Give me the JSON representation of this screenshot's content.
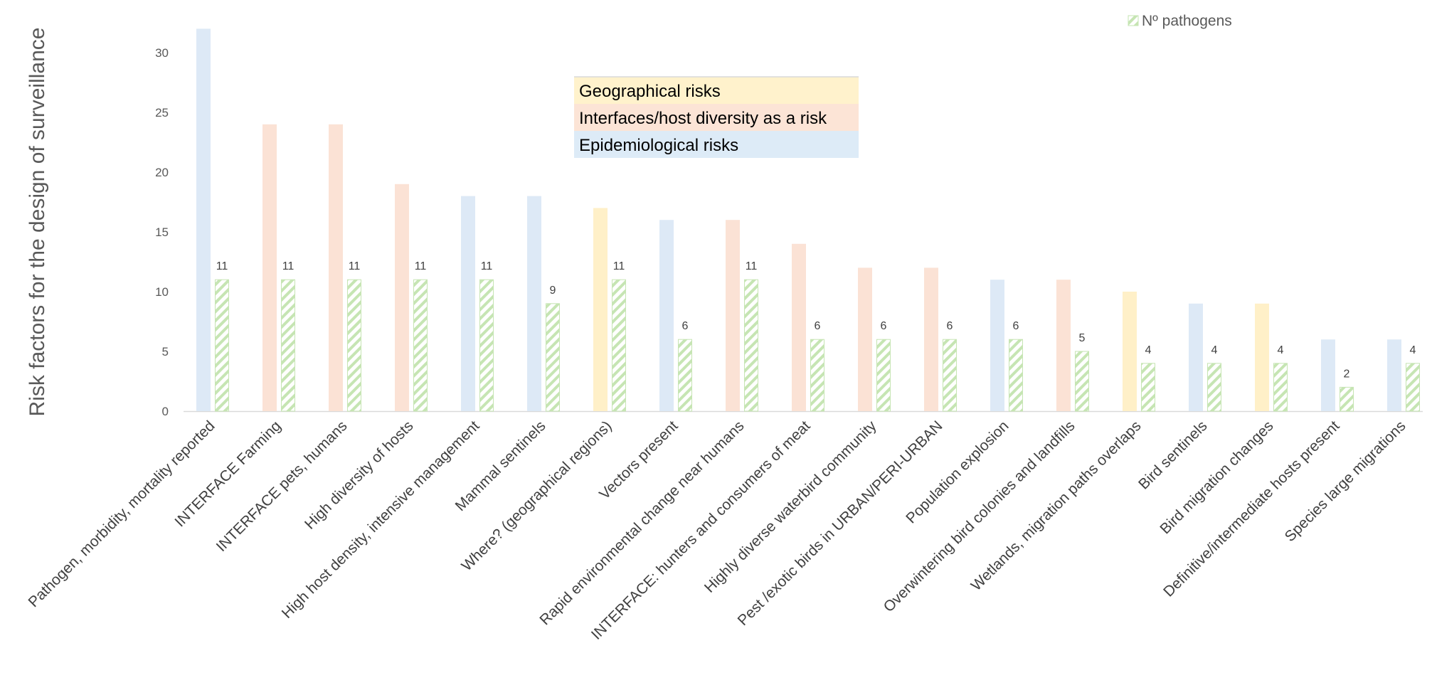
{
  "chart_data": {
    "type": "bar",
    "ylabel": "Risk factors for the design of surveillance",
    "xlabel": "",
    "ylim": [
      0,
      32
    ],
    "yticks": [
      0,
      5,
      10,
      15,
      20,
      25,
      30
    ],
    "grid": false,
    "legend_position": "top-right",
    "categories": [
      "Pathogen, morbidity, mortality reported",
      "INTERFACE  Farming",
      "INTERFACE  pets, humans",
      "High diversity of hosts",
      "High host density, intensive management",
      "Mammal sentinels",
      "Where? (geographical regions)",
      "Vectors  present",
      "Rapid environmental change near humans",
      "INTERFACE:  hunters and consumers of meat",
      "Highly diverse waterbird community",
      "Pest /exotic birds in URBAN/PERI-URBAN",
      "Population explosion",
      "Overwintering bird colonies and landfills",
      "Wetlands, migration paths overlaps",
      "Bird sentinels",
      "Bird migration changes",
      "Definitive/intermediate hosts present",
      "Species large migrations"
    ],
    "series": [
      {
        "values": [
          32,
          24,
          24,
          19,
          18,
          18,
          17,
          16,
          16,
          14,
          12,
          12,
          11,
          11,
          10,
          9,
          9,
          6,
          6
        ],
        "risk_group": [
          "epidemiological",
          "interfaces",
          "interfaces",
          "interfaces",
          "epidemiological",
          "epidemiological",
          "geographical",
          "epidemiological",
          "interfaces",
          "interfaces",
          "interfaces",
          "interfaces",
          "epidemiological",
          "interfaces",
          "geographical",
          "epidemiological",
          "geographical",
          "epidemiological",
          "epidemiological"
        ]
      },
      {
        "name": "Nº pathogens",
        "values": [
          11,
          11,
          11,
          11,
          11,
          9,
          11,
          6,
          11,
          6,
          6,
          6,
          6,
          5,
          4,
          4,
          4,
          2,
          4
        ],
        "data_labels": [
          "11",
          "11",
          "11",
          "11",
          "11",
          "9",
          "11",
          "6",
          "11",
          "6",
          "6",
          "6",
          "6",
          "5",
          "4",
          "4",
          "4",
          "2",
          "4"
        ],
        "pattern": "diagonal-hatch",
        "color": "#c6e5b3"
      }
    ],
    "risk_groups": {
      "geographical": {
        "label": "Geographical risks",
        "color": "#fff0c8",
        "box_color": "#fff2cc"
      },
      "interfaces": {
        "label": "Interfaces/host diversity as a risk",
        "color": "#fbe2d5",
        "box_color": "#fce4d6"
      },
      "epidemiological": {
        "label": "Epidemiological risks",
        "color": "#dde9f6",
        "box_color": "#ddebf7"
      }
    },
    "risk_box_order": [
      "geographical",
      "interfaces",
      "epidemiological"
    ]
  }
}
